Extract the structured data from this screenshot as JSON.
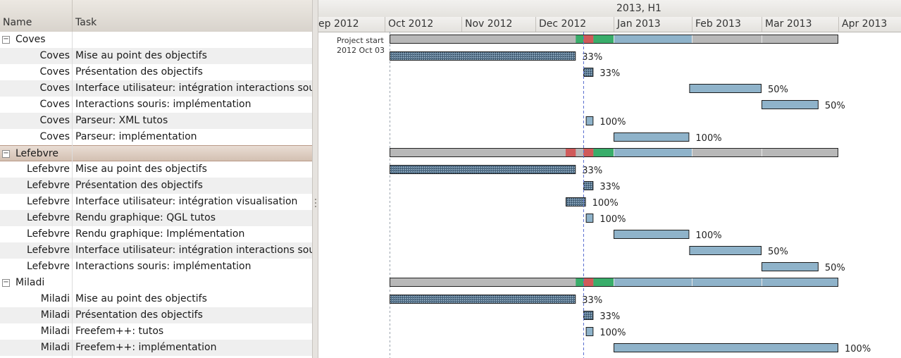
{
  "columns": {
    "name": "Name",
    "task": "Task"
  },
  "rows": [
    {
      "kind": "group",
      "name": "Coves",
      "expander": "−"
    },
    {
      "kind": "task",
      "name": "Coves",
      "task": "Mise au point des objectifs"
    },
    {
      "kind": "task",
      "name": "Coves",
      "task": "Présentation des objectifs"
    },
    {
      "kind": "task",
      "name": "Coves",
      "task": "Interface utilisateur: intégration interactions souris"
    },
    {
      "kind": "task",
      "name": "Coves",
      "task": "Interactions souris: implémentation"
    },
    {
      "kind": "task",
      "name": "Coves",
      "task": "Parseur: XML tutos"
    },
    {
      "kind": "task",
      "name": "Coves",
      "task": "Parseur: implémentation"
    },
    {
      "kind": "group",
      "name": "Lefebvre",
      "expander": "−",
      "selected": true
    },
    {
      "kind": "task",
      "name": "Lefebvre",
      "task": "Mise au point des objectifs"
    },
    {
      "kind": "task",
      "name": "Lefebvre",
      "task": "Présentation des objectifs"
    },
    {
      "kind": "task",
      "name": "Lefebvre",
      "task": "Interface utilisateur: intégration visualisation"
    },
    {
      "kind": "task",
      "name": "Lefebvre",
      "task": "Rendu graphique: QGL tutos"
    },
    {
      "kind": "task",
      "name": "Lefebvre",
      "task": "Rendu graphique: Implémentation"
    },
    {
      "kind": "task",
      "name": "Lefebvre",
      "task": "Interface utilisateur: intégration interactions souris"
    },
    {
      "kind": "task",
      "name": "Lefebvre",
      "task": "Interactions souris: implémentation"
    },
    {
      "kind": "group",
      "name": "Miladi",
      "expander": "−"
    },
    {
      "kind": "task",
      "name": "Miladi",
      "task": "Mise au point des objectifs"
    },
    {
      "kind": "task",
      "name": "Miladi",
      "task": "Présentation des objectifs"
    },
    {
      "kind": "task",
      "name": "Miladi",
      "task": "Freefem++: tutos"
    },
    {
      "kind": "task",
      "name": "Miladi",
      "task": "Freefem++: implémentation"
    }
  ],
  "timeline": {
    "period_label": "2013, H1",
    "months": [
      "ep 2012",
      "Oct 2012",
      "Nov 2012",
      "Dec 2012",
      "Jan 2013",
      "Feb 2013",
      "Mar 2013",
      "Apr 2013"
    ],
    "project_start_label": "Project start",
    "project_start_date": "2012 Oct 03"
  },
  "chart_data": {
    "type": "gantt",
    "x_unit": "date",
    "today_marker": "2012-12-20",
    "project_start": "2012-10-03",
    "summaries": [
      {
        "row": 0,
        "start": "2012-10-03",
        "end": "2013-04-01",
        "segments": [
          {
            "start": "2012-12-17",
            "end": "2012-12-20",
            "status": "green"
          },
          {
            "start": "2012-12-20",
            "end": "2012-12-24",
            "status": "red"
          },
          {
            "start": "2012-12-24",
            "end": "2013-01-01",
            "status": "green"
          },
          {
            "start": "2013-01-01",
            "end": "2013-02-01",
            "status": "blue"
          }
        ]
      },
      {
        "row": 7,
        "start": "2012-10-03",
        "end": "2013-04-01",
        "segments": [
          {
            "start": "2012-12-13",
            "end": "2012-12-17",
            "status": "red"
          },
          {
            "start": "2012-12-20",
            "end": "2012-12-24",
            "status": "red"
          },
          {
            "start": "2012-12-24",
            "end": "2013-01-01",
            "status": "green"
          },
          {
            "start": "2013-01-01",
            "end": "2013-02-01",
            "status": "blue"
          }
        ]
      },
      {
        "row": 15,
        "start": "2012-10-03",
        "end": "2013-04-01",
        "segments": [
          {
            "start": "2012-12-17",
            "end": "2012-12-20",
            "status": "green"
          },
          {
            "start": "2012-12-20",
            "end": "2012-12-24",
            "status": "red"
          },
          {
            "start": "2012-12-24",
            "end": "2013-01-01",
            "status": "green"
          },
          {
            "start": "2013-01-01",
            "end": "2013-04-01",
            "status": "blue"
          }
        ]
      }
    ],
    "tasks": [
      {
        "row": 1,
        "start": "2012-10-03",
        "end": "2012-12-17",
        "percent": "33%",
        "state": "late"
      },
      {
        "row": 2,
        "start": "2012-12-20",
        "end": "2012-12-24",
        "percent": "33%",
        "state": "late"
      },
      {
        "row": 3,
        "start": "2013-01-31",
        "end": "2013-03-01",
        "percent": "50%",
        "state": "planned"
      },
      {
        "row": 4,
        "start": "2013-03-01",
        "end": "2013-03-24",
        "percent": "50%",
        "state": "planned"
      },
      {
        "row": 5,
        "start": "2012-12-21",
        "end": "2012-12-24",
        "percent": "100%",
        "state": "planned"
      },
      {
        "row": 6,
        "start": "2013-01-01",
        "end": "2013-01-31",
        "percent": "100%",
        "state": "planned"
      },
      {
        "row": 8,
        "start": "2012-10-03",
        "end": "2012-12-17",
        "percent": "33%",
        "state": "late"
      },
      {
        "row": 9,
        "start": "2012-12-20",
        "end": "2012-12-24",
        "percent": "33%",
        "state": "late"
      },
      {
        "row": 10,
        "start": "2012-12-13",
        "end": "2012-12-21",
        "percent": "100%",
        "state": "late"
      },
      {
        "row": 11,
        "start": "2012-12-21",
        "end": "2012-12-24",
        "percent": "100%",
        "state": "planned"
      },
      {
        "row": 12,
        "start": "2013-01-01",
        "end": "2013-01-31",
        "percent": "100%",
        "state": "planned"
      },
      {
        "row": 13,
        "start": "2013-01-31",
        "end": "2013-03-01",
        "percent": "50%",
        "state": "planned"
      },
      {
        "row": 14,
        "start": "2013-03-01",
        "end": "2013-03-24",
        "percent": "50%",
        "state": "planned"
      },
      {
        "row": 16,
        "start": "2012-10-03",
        "end": "2012-12-17",
        "percent": "33%",
        "state": "late"
      },
      {
        "row": 17,
        "start": "2012-12-20",
        "end": "2012-12-24",
        "percent": "33%",
        "state": "late"
      },
      {
        "row": 18,
        "start": "2012-12-21",
        "end": "2012-12-24",
        "percent": "100%",
        "state": "planned"
      },
      {
        "row": 19,
        "start": "2013-01-01",
        "end": "2013-04-01",
        "percent": "100%",
        "state": "planned"
      }
    ]
  },
  "colors": {
    "task_fill": "#8fb3ca",
    "late_fill": "#4a6680",
    "summary_gray": "#b8b8b8",
    "status_green": "#39ad6a",
    "status_red": "#d05a5a",
    "status_blue": "#8fb3ca",
    "today_line": "#5a6fd0"
  }
}
